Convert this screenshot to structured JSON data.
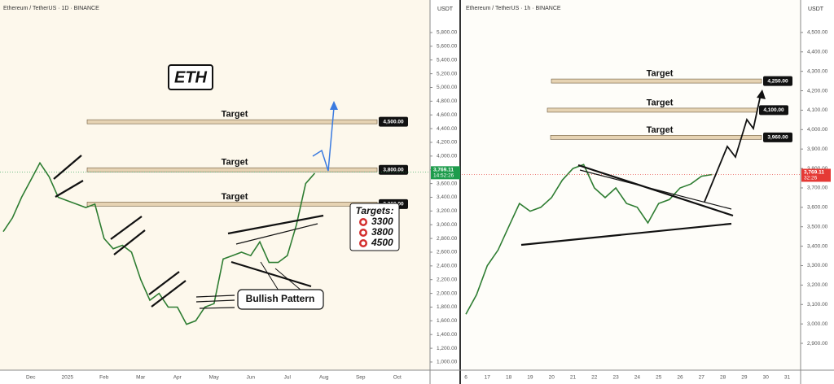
{
  "chart_data": [
    {
      "type": "line",
      "title": "Ethereum / TetherUS · 1D · BINANCE",
      "unit": "USDT",
      "categories": [
        null,
        null,
        null,
        "Dec",
        null,
        null,
        null,
        "2025",
        null,
        null,
        null,
        "Feb",
        null,
        null,
        null,
        "Mar",
        null,
        null,
        null,
        "Apr",
        null,
        null,
        null,
        "May",
        null,
        null,
        null,
        "Jun",
        null,
        null,
        null,
        "Jul",
        null,
        null,
        null,
        "Aug",
        null,
        null,
        null,
        "Sep",
        null,
        null,
        null,
        "Oct",
        null,
        null
      ],
      "values": [
        2900,
        3100,
        3400,
        3650,
        3900,
        3700,
        3400,
        3350,
        3300,
        3250,
        3300,
        2800,
        2650,
        2700,
        2600,
        2200,
        1900,
        2000,
        1800,
        1800,
        1550,
        1600,
        1800,
        1850,
        2500,
        2550,
        2600,
        2550,
        2750,
        2450,
        2450,
        2550,
        3000,
        3600,
        3750,
        null,
        null,
        null,
        null,
        null,
        null,
        null,
        null,
        null,
        null,
        null
      ],
      "color": "#2e7d32",
      "ylim": [
        881,
        6274
      ],
      "yticks": [
        {
          "value": 1000,
          "label": "1,000.00"
        },
        {
          "value": 1200,
          "label": "1,200.00"
        },
        {
          "value": 1400,
          "label": "1,400.00"
        },
        {
          "value": 1600,
          "label": "1,600.00"
        },
        {
          "value": 1800,
          "label": "1,800.00"
        },
        {
          "value": 2000,
          "label": "2,000.00"
        },
        {
          "value": 2200,
          "label": "2,200.00"
        },
        {
          "value": 2400,
          "label": "2,400.00"
        },
        {
          "value": 2600,
          "label": "2,600.00"
        },
        {
          "value": 2800,
          "label": "2,800.00"
        },
        {
          "value": 3000,
          "label": "3,000.00"
        },
        {
          "value": 3200,
          "label": "3,200.00"
        },
        {
          "value": 3400,
          "label": "3,400.00"
        },
        {
          "value": 3600,
          "label": "3,600.00"
        },
        {
          "value": 3800,
          "label": "3,800.00"
        },
        {
          "value": 4000,
          "label": "4,000.00"
        },
        {
          "value": 4200,
          "label": "4,200.00"
        },
        {
          "value": 4400,
          "label": "4,400.00"
        },
        {
          "value": 4600,
          "label": "4,600.00"
        },
        {
          "value": 4800,
          "label": "4,800.00"
        },
        {
          "value": 5000,
          "label": "5,000.00"
        },
        {
          "value": 5200,
          "label": "5,200.00"
        },
        {
          "value": 5400,
          "label": "5,400.00"
        },
        {
          "value": 5600,
          "label": "5,600.00"
        },
        {
          "value": 5800,
          "label": "5,800.00"
        }
      ],
      "grid": false,
      "last_price": {
        "value": 3769.11,
        "label": "3,769.11",
        "color": "#1e9c4c"
      },
      "countdown": "14:52:26",
      "levels": [
        {
          "value": 4500,
          "label": "4,500.00",
          "text": "Target"
        },
        {
          "value": 3800,
          "label": "3,800.00",
          "text": "Target"
        },
        {
          "value": 3300,
          "label": "3,300.00",
          "text": "Target"
        }
      ],
      "annotations": {
        "badge": "ETH",
        "targets_title": "Targets:",
        "targets": [
          3300,
          3800,
          4500
        ],
        "pattern": "Bullish Pattern"
      }
    },
    {
      "type": "line",
      "title": "Ethereum / TetherUS · 1h · BINANCE",
      "unit": "USDT",
      "categories": [
        "6",
        null,
        "17",
        null,
        "18",
        null,
        "19",
        null,
        "20",
        null,
        "21",
        null,
        "22",
        null,
        "23",
        null,
        "24",
        null,
        "25",
        null,
        "26",
        null,
        "27",
        null,
        "28",
        null,
        "29",
        null,
        "30",
        null,
        "31",
        null
      ],
      "values": [
        3050,
        3150,
        3300,
        3380,
        3500,
        3620,
        3580,
        3600,
        3650,
        3740,
        3800,
        3820,
        3700,
        3650,
        3700,
        3620,
        3600,
        3520,
        3620,
        3640,
        3700,
        3720,
        3760,
        3769,
        null,
        null,
        null,
        null,
        null,
        null,
        null,
        null
      ],
      "color": "#2e7d32",
      "ylim": [
        2762,
        4667
      ],
      "yticks": [
        {
          "value": 2900,
          "label": "2,900.00"
        },
        {
          "value": 3000,
          "label": "3,000.00"
        },
        {
          "value": 3100,
          "label": "3,100.00"
        },
        {
          "value": 3200,
          "label": "3,200.00"
        },
        {
          "value": 3300,
          "label": "3,300.00"
        },
        {
          "value": 3400,
          "label": "3,400.00"
        },
        {
          "value": 3500,
          "label": "3,500.00"
        },
        {
          "value": 3600,
          "label": "3,600.00"
        },
        {
          "value": 3700,
          "label": "3,700.00"
        },
        {
          "value": 3800,
          "label": "3,800.00"
        },
        {
          "value": 3900,
          "label": "3,900.00"
        },
        {
          "value": 4000,
          "label": "4,000.00"
        },
        {
          "value": 4100,
          "label": "4,100.00"
        },
        {
          "value": 4200,
          "label": "4,200.00"
        },
        {
          "value": 4300,
          "label": "4,300.00"
        },
        {
          "value": 4400,
          "label": "4,400.00"
        },
        {
          "value": 4500,
          "label": "4,500.00"
        }
      ],
      "grid": false,
      "last_price": {
        "value": 3769.11,
        "label": "3,769.11",
        "color": "#e53935"
      },
      "countdown": "32:26",
      "levels": [
        {
          "value": 4250,
          "label": "4,250.00",
          "text": "Target"
        },
        {
          "value": 4100,
          "label": "4,100.00",
          "text": "Target"
        },
        {
          "value": 3960,
          "label": "3,960.00",
          "text": "Target"
        }
      ]
    }
  ]
}
